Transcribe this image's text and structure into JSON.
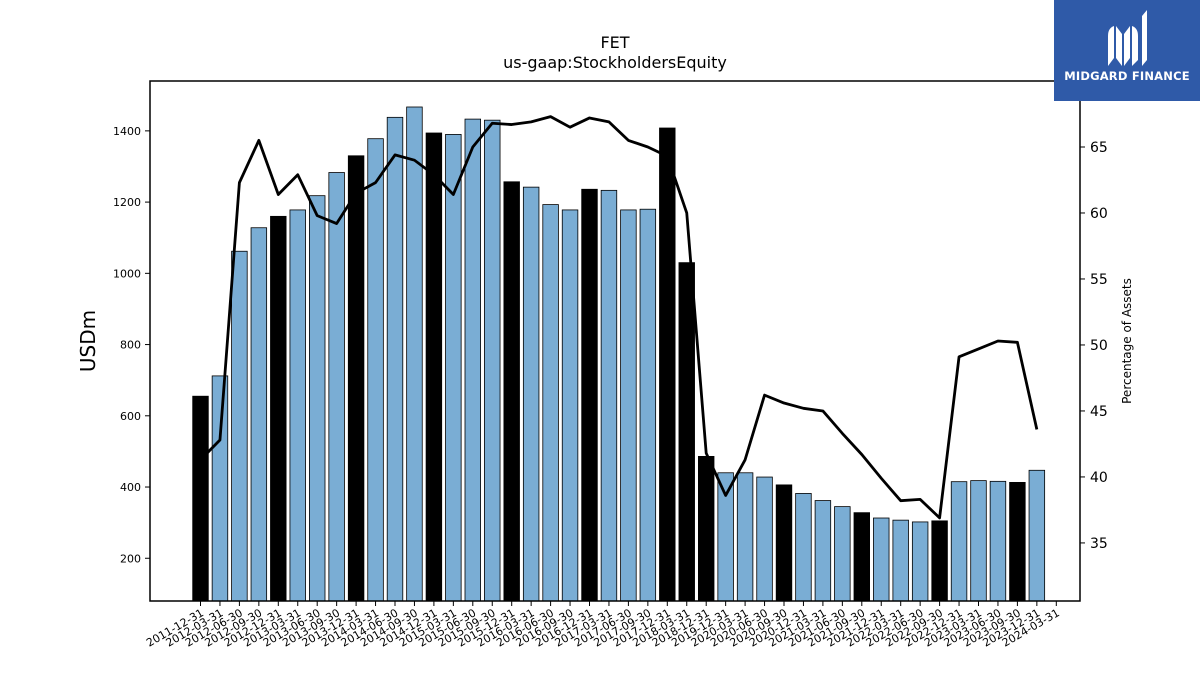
{
  "logo": {
    "text": "MIDGARD FINANCE"
  },
  "chart_data": {
    "type": "bar",
    "title": "FET",
    "subtitle": "us-gaap:StockholdersEquity",
    "ylabel": "USDm",
    "y2label": "Percentage of Assets",
    "ylim": [
      80,
      1540
    ],
    "y2lim": [
      30.6,
      70
    ],
    "yticks": [
      200,
      400,
      600,
      800,
      1000,
      1200,
      1400
    ],
    "y2ticks": [
      35,
      40,
      45,
      50,
      55,
      60,
      65
    ],
    "colors": {
      "bar_default": "#7aadd4",
      "bar_highlight": "#000000",
      "line": "#000000"
    },
    "categories": [
      "2011-12-31",
      "2012-03-31",
      "2012-06-30",
      "2012-09-30",
      "2012-12-31",
      "2013-03-31",
      "2013-06-30",
      "2013-09-30",
      "2013-12-31",
      "2014-03-31",
      "2014-06-30",
      "2014-09-30",
      "2014-12-31",
      "2015-03-31",
      "2015-06-30",
      "2015-09-30",
      "2015-12-31",
      "2016-03-31",
      "2016-06-30",
      "2016-09-30",
      "2016-12-31",
      "2017-03-31",
      "2017-06-30",
      "2017-09-30",
      "2017-12-31",
      "2018-03-31",
      "2018-12-31",
      "2019-12-31",
      "2020-03-31",
      "2020-06-30",
      "2020-09-30",
      "2020-12-31",
      "2021-03-31",
      "2021-06-30",
      "2021-09-30",
      "2021-12-31",
      "2022-03-31",
      "2022-06-30",
      "2022-09-30",
      "2022-12-31",
      "2023-03-31",
      "2023-06-30",
      "2023-09-30",
      "2023-12-31",
      "2024-03-31"
    ],
    "series": [
      {
        "type": "bar",
        "values": [
          655,
          712,
          1062,
          1128,
          1160,
          1178,
          1218,
          1283,
          1330,
          1378,
          1438,
          1467,
          1394,
          1390,
          1433,
          1430,
          1257,
          1242,
          1193,
          1178,
          1236,
          1233,
          1178,
          1180,
          1408,
          1030,
          486,
          440,
          440,
          428,
          406,
          382,
          362,
          345,
          328,
          313,
          307,
          302,
          305,
          415,
          418,
          416,
          413,
          447,
          0
        ],
        "highlight": [
          true,
          false,
          false,
          false,
          true,
          false,
          false,
          false,
          true,
          false,
          false,
          false,
          true,
          false,
          false,
          false,
          true,
          false,
          false,
          false,
          true,
          false,
          false,
          false,
          true,
          true,
          true,
          false,
          false,
          false,
          true,
          false,
          false,
          false,
          true,
          false,
          false,
          false,
          true,
          false,
          false,
          false,
          true,
          false,
          false
        ]
      },
      {
        "type": "line",
        "axis": "right",
        "values": [
          41.3,
          42.8,
          62.3,
          65.5,
          61.4,
          62.9,
          59.8,
          59.2,
          61.5,
          62.3,
          64.4,
          64.0,
          62.9,
          61.4,
          65.0,
          66.8,
          66.7,
          66.9,
          67.3,
          66.5,
          67.2,
          66.9,
          65.5,
          65.0,
          64.3,
          60.0,
          41.8,
          38.6,
          41.3,
          46.2,
          45.6,
          45.2,
          45.0,
          43.3,
          41.7,
          39.9,
          38.2,
          38.3,
          36.9,
          49.1,
          49.7,
          50.3,
          50.2,
          43.6,
          null
        ]
      }
    ]
  }
}
